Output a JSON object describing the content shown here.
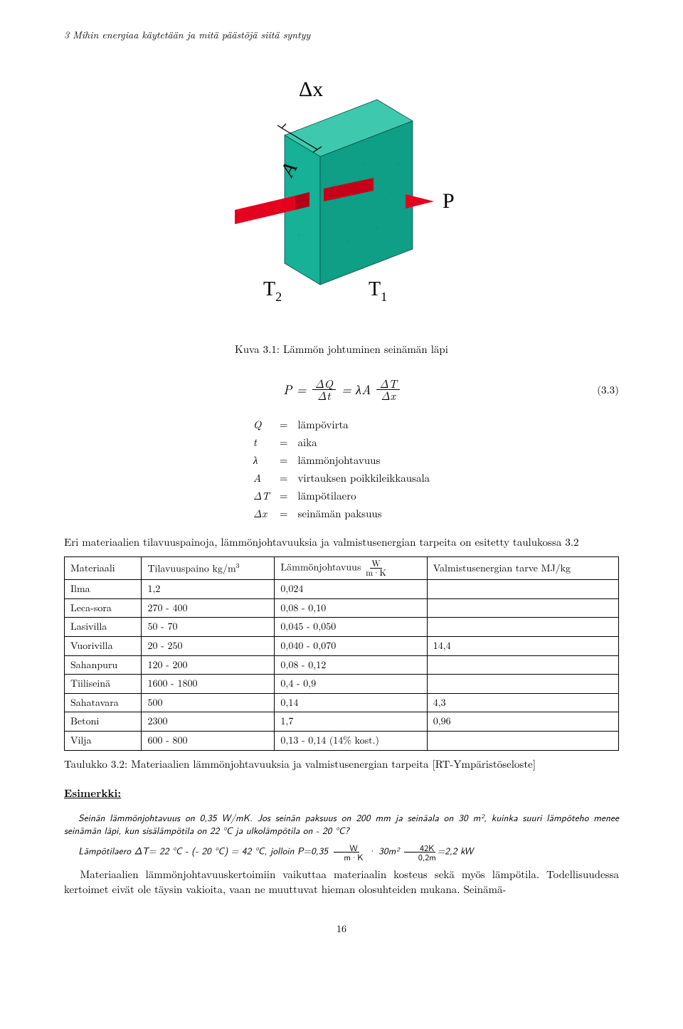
{
  "header": "3 Mihin energiaa käytetään ja mitä päästöjä siitä syntyy",
  "figure": {
    "labels": {
      "dx": "Δx",
      "A": "A",
      "P": "P",
      "T1": "T",
      "T1sub": "1",
      "T2": "T",
      "T2sub": "2"
    },
    "colors": {
      "slab_front": "#16b197",
      "slab_side": "#0a9880",
      "slab_top": "#3ec9af",
      "rod": "#e6001f",
      "arrow": "#e6001f"
    },
    "caption": "Kuva 3.1: Lämmön johtuminen seinämän läpi"
  },
  "equation": {
    "lhs": "P =",
    "f1_num": "ΔQ",
    "f1_den": "Δt",
    "mid": "= λA",
    "f2_num": "ΔT",
    "f2_den": "Δx",
    "num": "(3.3)"
  },
  "symbols": {
    "rows": [
      {
        "s": "Q",
        "eq": "=",
        "d": "lämpövirta"
      },
      {
        "s": "t",
        "eq": "=",
        "d": "aika"
      },
      {
        "s": "λ",
        "eq": "=",
        "d": "lämmönjohtavuus"
      },
      {
        "s": "A",
        "eq": "=",
        "d": "virtauksen poikkileikkausala"
      },
      {
        "s": "ΔT",
        "eq": "=",
        "d": "lämpötilaero"
      },
      {
        "s": "Δx",
        "eq": "=",
        "d": "seinämän paksuus"
      }
    ]
  },
  "para1a": "Eri materiaalien tilavuuspainoja, lämmönjohtavuuksia ja valmistusenergian tarpeita on esitetty taulukossa 3.2",
  "table": {
    "headers": {
      "c1": "Materiaali",
      "c2_a": "Tilavuuspaino kg/m",
      "c2_sup": "3",
      "c3_a": "Lämmönjohtavuus ",
      "c3_fnum": "W",
      "c3_fden": "m·K",
      "c4": "Valmistusenergian tarve MJ/kg"
    },
    "rows": [
      {
        "m": "Ilma",
        "d": "1,2",
        "l": "0,024",
        "e": ""
      },
      {
        "m": "Leca-sora",
        "d": "270 - 400",
        "l": "0,08 - 0,10",
        "e": ""
      },
      {
        "m": "Lasivilla",
        "d": "50 - 70",
        "l": "0,045 - 0,050",
        "e": ""
      },
      {
        "m": "Vuorivilla",
        "d": "20 - 250",
        "l": "0,040 - 0,070",
        "e": "14,4"
      },
      {
        "m": "Sahanpuru",
        "d": "120 - 200",
        "l": "0,08 - 0,12",
        "e": ""
      },
      {
        "m": "Tiiliseinä",
        "d": "1600 - 1800",
        "l": "0,4 - 0,9",
        "e": ""
      },
      {
        "m": "Sahatavara",
        "d": "500",
        "l": "0,14",
        "e": "4,3"
      },
      {
        "m": "Betoni",
        "d": "2300",
        "l": "1,7",
        "e": "0,96"
      },
      {
        "m": "Vilja",
        "d": "600 - 800",
        "l": "0,13 - 0,14 (14% kost.)",
        "e": ""
      }
    ],
    "caption": "Taulukko 3.2: Materiaalien lämmönjohtavuuksia ja valmistusenergian tarpeita [RT-Ympäristöseloste]"
  },
  "example": {
    "heading": "Esimerkki:",
    "line1": "Seinän lämmönjohtavuus on 0,35 W/mK. Jos seinän paksuus on 200 mm ja seinäala on 30 m², kuinka suuri lämpöteho menee seinämän läpi, kun sisälämpötila on 22 °C ja ulkolämpötila on - 20 °C?",
    "line2_a": "Lämpötilaero ΔT= 22 °C - (- 20 °C) = 42 °C, jolloin P=0,35",
    "line2_f1n": "W",
    "line2_f1d": "m·K",
    "line2_b": " · 30m²",
    "line2_f2n": "42K",
    "line2_f2d": "0,2m",
    "line2_c": "=2,2 kW"
  },
  "para2": "Materiaalien lämmönjohtavuuskertoimiin vaikuttaa materiaalin kosteus sekä myös lämpötila. Todellisuudessa kertoimet eivät ole täysin vakioita, vaan ne muuttuvat hieman olosuhteiden mukana. Seinämä-",
  "pagenum": "16"
}
